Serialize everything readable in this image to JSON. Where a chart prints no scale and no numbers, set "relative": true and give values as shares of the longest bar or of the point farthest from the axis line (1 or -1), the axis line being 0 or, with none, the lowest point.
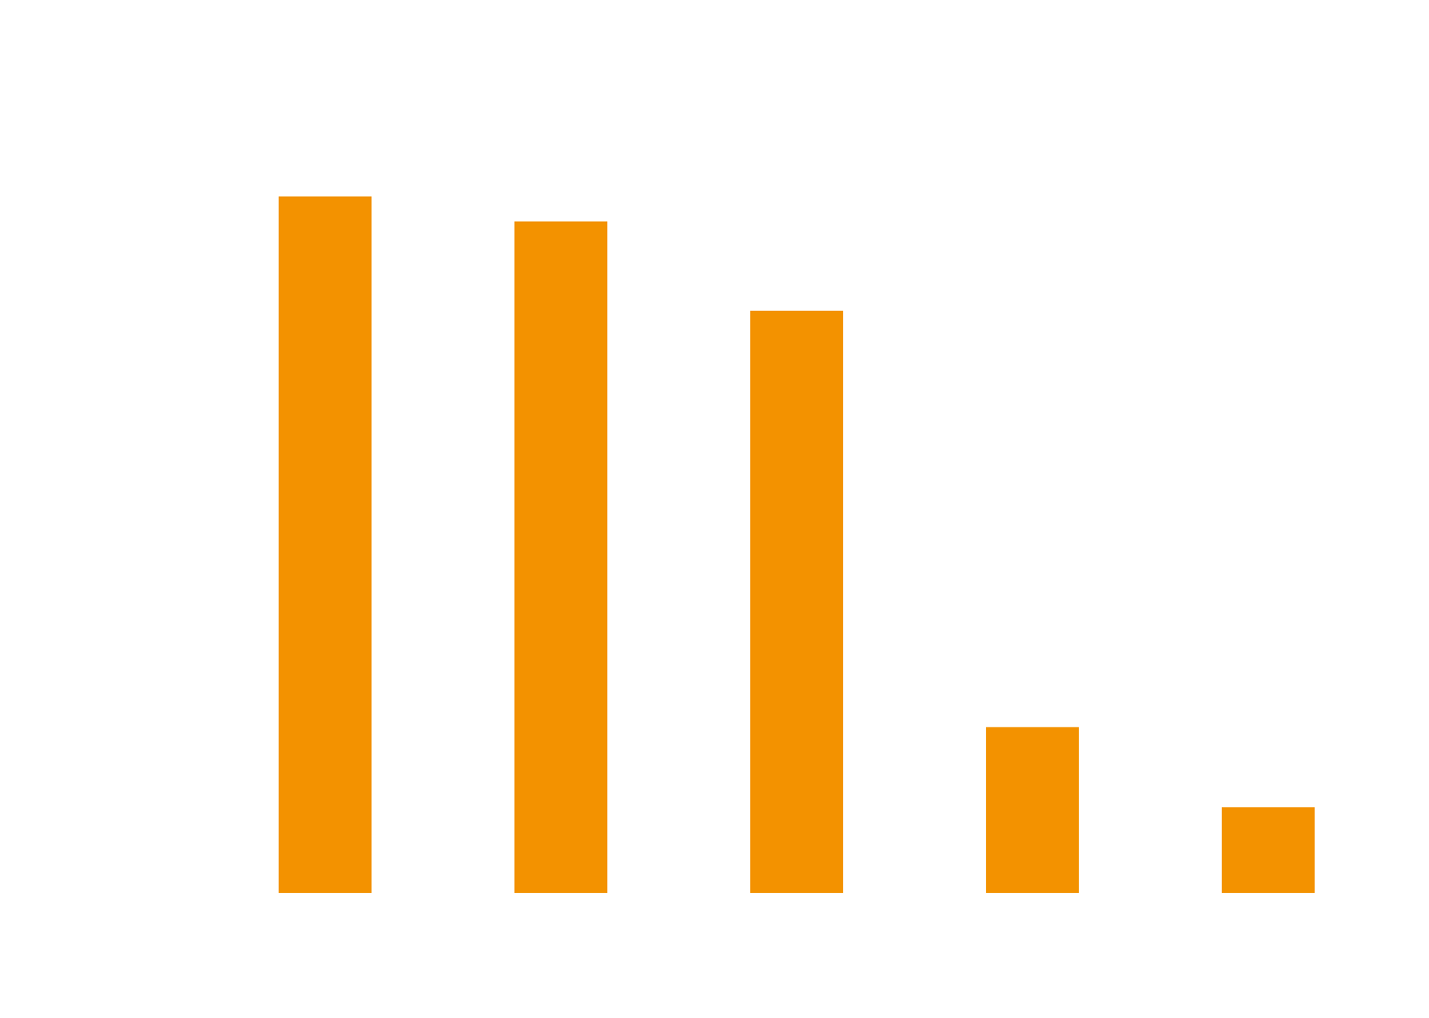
{
  "chart_data": {
    "type": "bar",
    "relative": true,
    "categories": [
      null,
      null,
      null,
      null,
      null
    ],
    "values": [
      1,
      0.964,
      0.836,
      0.238,
      0.123
    ],
    "color": "#f39200"
  }
}
